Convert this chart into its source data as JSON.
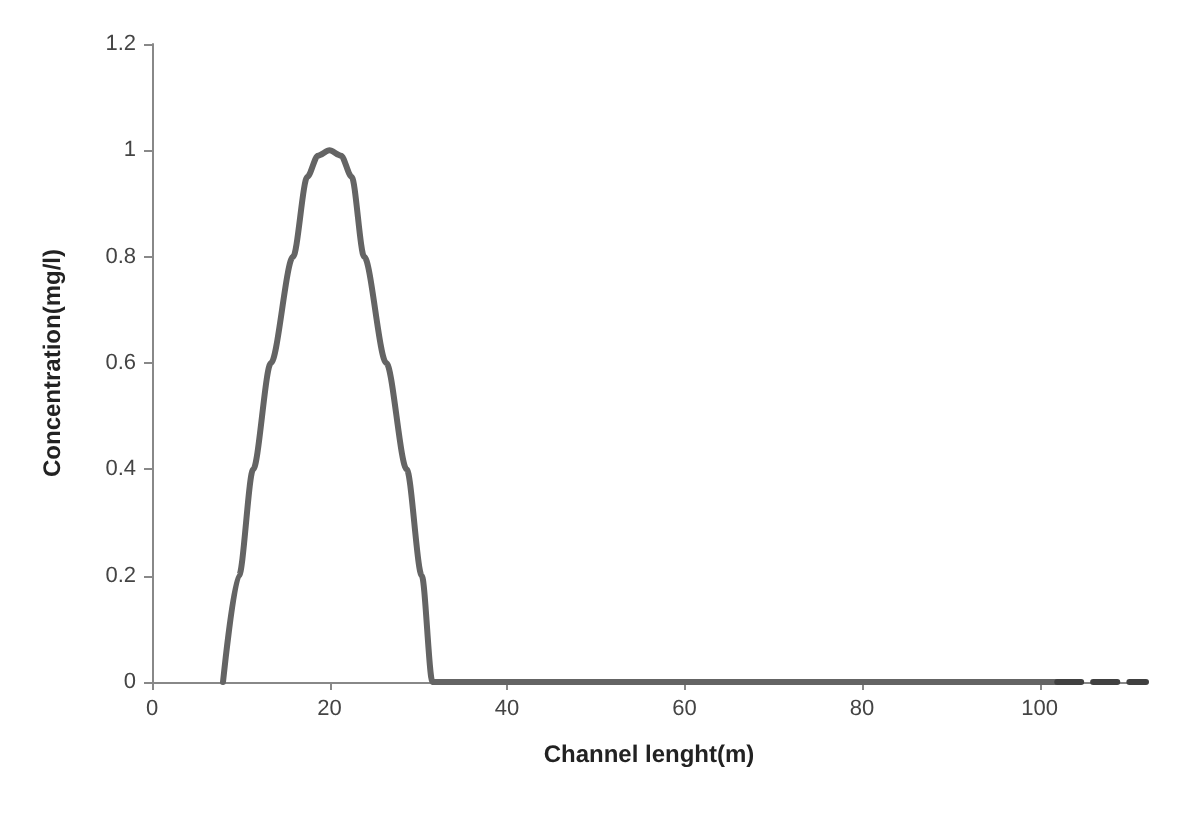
{
  "chart_data": {
    "type": "line",
    "xlabel": "Channel lenght(m)",
    "ylabel": "Concentration(mg/l)",
    "xlim": [
      0,
      112
    ],
    "xticks": [
      0,
      20,
      40,
      60,
      80,
      100
    ],
    "ylim": [
      0,
      1.2
    ],
    "yticks": [
      0,
      0.2,
      0.4,
      0.6,
      0.8,
      1,
      1.2
    ],
    "grid": false,
    "marker": "none",
    "series": [
      {
        "color": "#646464",
        "line_style": "solid",
        "x": [
          8,
          9.8,
          11.4,
          13.4,
          15.9,
          17.5,
          18.7,
          20,
          21.3,
          22.5,
          23.9,
          26.4,
          28.7,
          30.4,
          31.6,
          102
        ],
        "values": [
          0,
          0.2,
          0.4,
          0.6,
          0.8,
          0.95,
          0.99,
          1,
          0.99,
          0.95,
          0.8,
          0.6,
          0.4,
          0.2,
          0,
          0
        ]
      },
      {
        "color": "#404040",
        "line_style": "dashed",
        "x": [
          102,
          112
        ],
        "values": [
          0,
          0
        ]
      }
    ]
  }
}
